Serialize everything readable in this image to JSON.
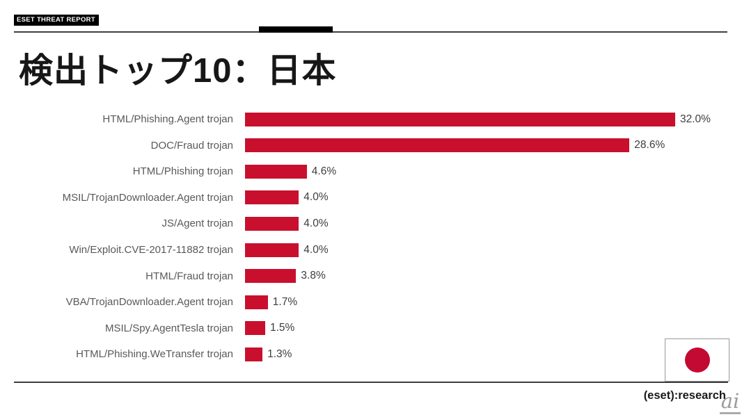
{
  "header": {
    "badge": "ESET THREAT REPORT",
    "title": "検出トップ10：日本"
  },
  "chart_data": {
    "type": "bar",
    "orientation": "horizontal",
    "title": "検出トップ10：日本",
    "categories": [
      "HTML/Phishing.Agent trojan",
      "DOC/Fraud trojan",
      "HTML/Phishing trojan",
      "MSIL/TrojanDownloader.Agent trojan",
      "JS/Agent trojan",
      "Win/Exploit.CVE-2017-11882 trojan",
      "HTML/Fraud trojan",
      "VBA/TrojanDownloader.Agent trojan",
      "MSIL/Spy.AgentTesla trojan",
      "HTML/Phishing.WeTransfer trojan"
    ],
    "values": [
      32.0,
      28.6,
      4.6,
      4.0,
      4.0,
      4.0,
      3.8,
      1.7,
      1.5,
      1.3
    ],
    "value_labels": [
      "32.0%",
      "28.6%",
      "4.6%",
      "4.0%",
      "4.0%",
      "4.0%",
      "3.8%",
      "1.7%",
      "1.5%",
      "1.3%"
    ],
    "xlim": [
      0,
      33
    ],
    "grid": false,
    "legend": false,
    "bar_color": "#C8102E",
    "label_color": "#595959",
    "value_color": "#3d3d3d"
  },
  "footer": {
    "research_label": "(eset):research",
    "watermark": "ai",
    "flag": {
      "name": "japan-flag",
      "circle_color": "#C30A32"
    }
  }
}
